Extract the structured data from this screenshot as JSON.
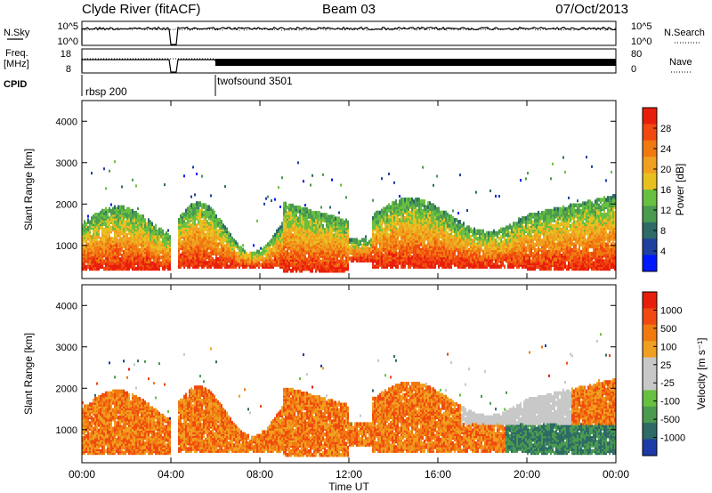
{
  "header": {
    "station": "Clyde River (fitACF)",
    "beam": "Beam 03",
    "date": "07/Oct/2013"
  },
  "nsky_panel": {
    "left_label": "N.Sky",
    "right_label": "N.Search",
    "left_ticks": [
      "10^5",
      "10^0"
    ],
    "right_ticks": [
      "10^5",
      "10^0"
    ]
  },
  "freq_panel": {
    "left_label_line1": "Freq.",
    "left_label_line2": "[MHz]",
    "right_label": "Nave",
    "left_ticks": [
      "18",
      "8"
    ],
    "right_ticks": [
      "80",
      "0"
    ]
  },
  "cpid": {
    "label": "CPID",
    "entries": [
      {
        "name": "rbsp 200",
        "start_hour": 0
      },
      {
        "name": "twofsound 3501",
        "start_hour": 6
      }
    ]
  },
  "chart_data": [
    {
      "type": "heatmap",
      "ylabel": "Slant Range [km]",
      "colorbar_label": "Power [dB]",
      "colorbar_ticks": [
        "28",
        "24",
        "20",
        "16",
        "12",
        "8",
        "4"
      ],
      "colorbar_colors": [
        "#0018ff",
        "#2040a0",
        "#2e6a66",
        "#4a9a50",
        "#68c040",
        "#e8c020",
        "#f0a020",
        "#f07a10",
        "#f04a10",
        "#e81e0c"
      ],
      "x_ticks": [
        "00:00",
        "04:00",
        "08:00",
        "12:00",
        "16:00",
        "20:00",
        "00:00"
      ],
      "y_ticks": [
        "1000",
        "2000",
        "3000",
        "4000"
      ],
      "xlim_hours": [
        0,
        24
      ],
      "ylim_km": [
        200,
        4500
      ]
    },
    {
      "type": "heatmap",
      "ylabel": "Slant Range [km]",
      "colorbar_label": "Velocity [m s⁻¹]",
      "colorbar_ticks": [
        "1000",
        "500",
        "100",
        "25",
        "-25",
        "-100",
        "-500",
        "-1000"
      ],
      "colorbar_colors": [
        "#1c3aa8",
        "#2e6a66",
        "#4a9a50",
        "#68c040",
        "#c8c8c8",
        "#c8c8c8",
        "#f0a020",
        "#f07a10",
        "#f04a10",
        "#e81e0c"
      ],
      "x_ticks": [
        "00:00",
        "04:00",
        "08:00",
        "12:00",
        "16:00",
        "20:00",
        "00:00"
      ],
      "y_ticks": [
        "1000",
        "2000",
        "3000",
        "4000"
      ],
      "xlabel": "Time UT",
      "xlim_hours": [
        0,
        24
      ],
      "ylim_km": [
        200,
        4500
      ]
    }
  ]
}
